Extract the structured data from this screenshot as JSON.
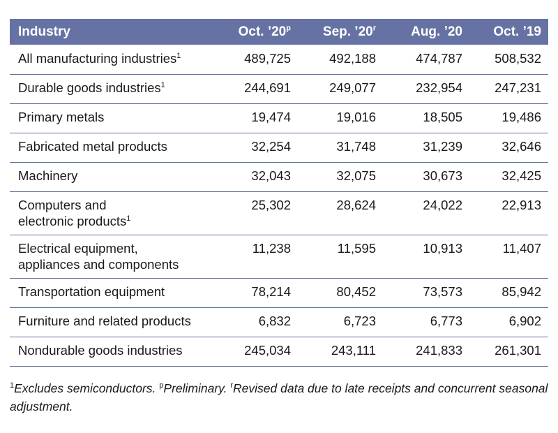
{
  "table": {
    "header": {
      "industry": "Industry",
      "columns": [
        {
          "label": "Oct. ’20",
          "sup": "p"
        },
        {
          "label": "Sep. ’20",
          "sup": "r"
        },
        {
          "label": "Aug. ’20",
          "sup": ""
        },
        {
          "label": "Oct. ’19",
          "sup": ""
        }
      ]
    },
    "rows": [
      {
        "line1": "All manufacturing industries",
        "line2": "",
        "sup": "1",
        "values": [
          "489,725",
          "492,188",
          "474,787",
          "508,532"
        ]
      },
      {
        "line1": "Durable goods industries",
        "line2": "",
        "sup": "1",
        "values": [
          "244,691",
          "249,077",
          "232,954",
          "247,231"
        ]
      },
      {
        "line1": "Primary metals",
        "line2": "",
        "sup": "",
        "values": [
          "19,474",
          "19,016",
          "18,505",
          "19,486"
        ]
      },
      {
        "line1": "Fabricated metal products",
        "line2": "",
        "sup": "",
        "values": [
          "32,254",
          "31,748",
          "31,239",
          "32,646"
        ]
      },
      {
        "line1": "Machinery",
        "line2": "",
        "sup": "",
        "values": [
          "32,043",
          "32,075",
          "30,673",
          "32,425"
        ]
      },
      {
        "line1": "Computers and",
        "line2": "electronic products",
        "sup": "1",
        "values": [
          "25,302",
          "28,624",
          "24,022",
          "22,913"
        ]
      },
      {
        "line1": "Electrical equipment,",
        "line2": "appliances and components",
        "sup": "",
        "values": [
          "11,238",
          "11,595",
          "10,913",
          "11,407"
        ]
      },
      {
        "line1": "Transportation equipment",
        "line2": "",
        "sup": "",
        "values": [
          "78,214",
          "80,452",
          "73,573",
          "85,942"
        ]
      },
      {
        "line1": "Furniture and related products",
        "line2": "",
        "sup": "",
        "values": [
          "6,832",
          "6,723",
          "6,773",
          "6,902"
        ]
      },
      {
        "line1": "Nondurable goods industries",
        "line2": "",
        "sup": "",
        "values": [
          "245,034",
          "243,111",
          "241,833",
          "261,301"
        ]
      }
    ]
  },
  "footnote": {
    "sup1": "1",
    "text1": "Excludes semiconductors. ",
    "sup2": "p",
    "text2": "Preliminary. ",
    "sup3": "r",
    "text3": "Revised data due to late receipts and concurrent seasonal adjustment."
  }
}
